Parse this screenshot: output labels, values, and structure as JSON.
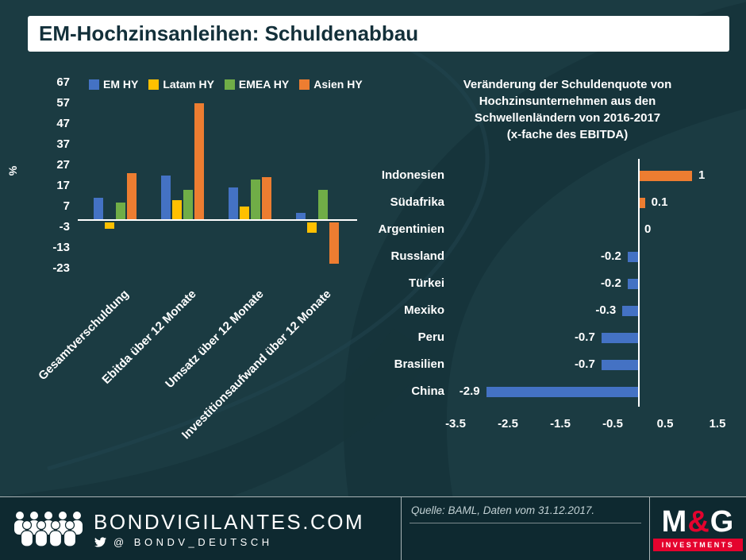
{
  "title": "EM-Hochzinsanleihen: Schuldenabbau",
  "colors": {
    "background": "#1b3b42",
    "footer_background": "#0e2930",
    "series_blue": "#4472c4",
    "series_yellow": "#ffc000",
    "series_green": "#70ad47",
    "series_orange": "#ed7d31",
    "brand_red": "#e4032e",
    "text_white": "#ffffff"
  },
  "chart_data": [
    {
      "type": "bar",
      "orientation": "vertical",
      "ylabel": "%",
      "ylim": [
        -23,
        67
      ],
      "yticks": [
        67,
        57,
        47,
        37,
        27,
        17,
        7,
        -3,
        -13,
        -23
      ],
      "legend_position": "top",
      "grid": false,
      "categories": [
        "Gesamtverschuldung",
        "Ebitda über 12 Monate",
        "Umsatz über 12 Monate",
        "Investitionsaufwand über 12 Monate"
      ],
      "series": [
        {
          "name": "EM HY",
          "color": "#4472c4",
          "values": [
            11,
            22,
            16,
            4
          ]
        },
        {
          "name": "Latam HY",
          "color": "#ffc000",
          "values": [
            -3,
            10,
            7,
            -5
          ]
        },
        {
          "name": "EMEA HY",
          "color": "#70ad47",
          "values": [
            9,
            15,
            20,
            15
          ]
        },
        {
          "name": "Asien HY",
          "color": "#ed7d31",
          "values": [
            23,
            57,
            21,
            -20
          ]
        }
      ]
    },
    {
      "type": "bar",
      "orientation": "horizontal",
      "title_lines": [
        "Veränderung der Schuldenquote von",
        "Hochzinsunternehmen aus den",
        "Schwellenländern von 2016-2017",
        "(x-fache des EBITDA)"
      ],
      "categories": [
        "Indonesien",
        "Südafrika",
        "Argentinien",
        "Russland",
        "Türkei",
        "Mexiko",
        "Peru",
        "Brasilien",
        "China"
      ],
      "values": [
        1,
        0.1,
        0,
        -0.2,
        -0.2,
        -0.3,
        -0.7,
        -0.7,
        -2.9
      ],
      "value_labels": [
        "1",
        "0.1",
        "0",
        "-0.2",
        "-0.2",
        "-0.3",
        "-0.7",
        "-0.7",
        "-2.9"
      ],
      "xlim": [
        -3.5,
        1.5
      ],
      "xticks": [
        -3.5,
        -2.5,
        -1.5,
        -0.5,
        0.5,
        1.5
      ],
      "xtick_labels": [
        "-3.5",
        "-2.5",
        "-1.5",
        "-0.5",
        "0.5",
        "1.5"
      ],
      "positive_color": "#ed7d31",
      "negative_color": "#4472c4",
      "grid": false
    }
  ],
  "footer": {
    "site": "BONDVIGILANTES.COM",
    "twitter": "@ BONDV_DEUTSCH",
    "source": "Quelle: BAML, Daten vom 31.12.2017.",
    "brand_m": "M",
    "brand_amp": "&",
    "brand_g": "G",
    "brand_sub": "INVESTMENTS"
  }
}
